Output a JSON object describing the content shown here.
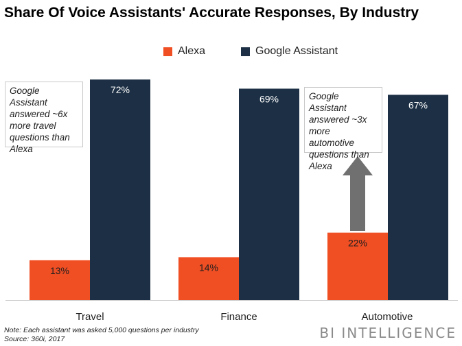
{
  "title": "Share Of Voice Assistants' Accurate Responses, By Industry",
  "colors": {
    "alexa": "#f04e23",
    "google": "#1c2f44",
    "arrow": "#707070"
  },
  "legend": {
    "alexa": "Alexa",
    "google": "Google Assistant"
  },
  "chart_data": {
    "type": "bar",
    "categories": [
      "Travel",
      "Finance",
      "Automotive"
    ],
    "series": [
      {
        "name": "Alexa",
        "values": [
          13,
          14,
          22
        ],
        "labels": [
          "13%",
          "14%",
          "22%"
        ]
      },
      {
        "name": "Google Assistant",
        "values": [
          72,
          69,
          67
        ],
        "labels": [
          "72%",
          "69%",
          "67%"
        ]
      }
    ],
    "ylim": [
      0,
      72
    ],
    "grid": false,
    "legend_position": "top-center"
  },
  "annotations": {
    "travel": "Google Assistant answered ~6x more travel questions than Alexa",
    "automotive": "Google Assistant answered ~3x more automotive questions than Alexa"
  },
  "note": "Note: Each assistant was asked 5,000 questions per industry",
  "source": "Source: 360i, 2017",
  "brand": "BI INTELLIGENCE"
}
